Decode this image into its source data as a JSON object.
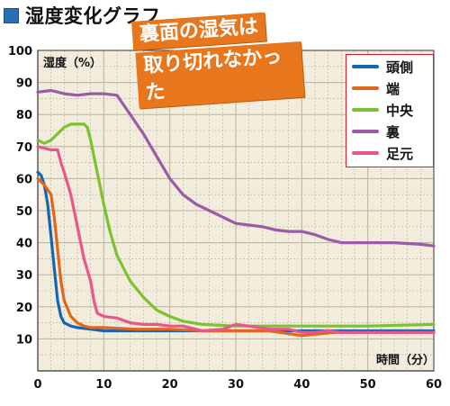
{
  "header": {
    "title": "湿度変化グラフ"
  },
  "callout": {
    "line1": "裏面の湿気は",
    "line2": "取り切れなかった"
  },
  "colors": {
    "header_square": "#2a6fb6",
    "callout_bg": "#e8761c",
    "legend_border": "#d31f25",
    "plot_bg": "#f2ecdc",
    "grid": "#b9b29a"
  },
  "chart_data": {
    "type": "line",
    "title": "",
    "xlabel": "時間（分）",
    "ylabel": "湿度（%）",
    "xlim": [
      0,
      60
    ],
    "ylim": [
      0,
      100
    ],
    "xticks": [
      0,
      10,
      20,
      30,
      40,
      50,
      60
    ],
    "yticks": [
      10,
      20,
      30,
      40,
      50,
      60,
      70,
      80,
      90,
      100
    ],
    "grid": true,
    "legend_position": "top-right",
    "series": [
      {
        "name": "頭側",
        "color": "#1565b5",
        "x": [
          0,
          0.5,
          1,
          1.5,
          2,
          2.5,
          3,
          3.5,
          4,
          5,
          6,
          8,
          10,
          20,
          30,
          40,
          50,
          60
        ],
        "y": [
          62,
          61,
          58,
          52,
          42,
          32,
          22,
          17,
          15,
          14,
          13.5,
          13,
          12.5,
          12.5,
          12.5,
          12.5,
          12.5,
          12.5
        ]
      },
      {
        "name": "端",
        "color": "#e2661b",
        "x": [
          0,
          1,
          2,
          2.5,
          3,
          3.5,
          4,
          5,
          6,
          7,
          8,
          10,
          15,
          20,
          25,
          30,
          35,
          40,
          45,
          50,
          60
        ],
        "y": [
          60,
          58,
          55,
          48,
          38,
          28,
          22,
          17,
          15,
          14,
          13.5,
          13.5,
          13,
          13,
          12.5,
          12.5,
          12.5,
          11,
          12,
          12,
          12
        ]
      },
      {
        "name": "中央",
        "color": "#7cc22e",
        "x": [
          0,
          1,
          2,
          3,
          4,
          5,
          6,
          7,
          7.5,
          8,
          9,
          10,
          11,
          12,
          14,
          16,
          18,
          20,
          22,
          25,
          30,
          40,
          50,
          60
        ],
        "y": [
          72,
          71,
          72,
          74,
          76,
          77,
          77,
          77,
          76,
          72,
          62,
          52,
          43,
          36,
          28,
          23,
          19,
          17,
          15.5,
          14.5,
          14,
          14,
          14,
          14.5
        ]
      },
      {
        "name": "裏",
        "color": "#9b5ba8",
        "x": [
          0,
          2,
          4,
          6,
          8,
          10,
          12,
          13,
          14,
          16,
          18,
          20,
          22,
          24,
          26,
          28,
          30,
          32,
          34,
          35,
          36,
          38,
          40,
          42,
          44,
          46,
          50,
          54,
          58,
          60
        ],
        "y": [
          87,
          87.5,
          86.5,
          86,
          86.5,
          86.5,
          86,
          83,
          80,
          74,
          67,
          60,
          55,
          52,
          50,
          48,
          46,
          45.5,
          45,
          44.5,
          44,
          43.5,
          43.5,
          42.5,
          41,
          40,
          40,
          40,
          39.5,
          39
        ]
      },
      {
        "name": "足元",
        "color": "#e9568a",
        "x": [
          0,
          2,
          3,
          3.5,
          4,
          5,
          6,
          7,
          8,
          8.5,
          9,
          10,
          12,
          14,
          16,
          18,
          20,
          22,
          25,
          28,
          30,
          32,
          35,
          38,
          40,
          42,
          44,
          46,
          50,
          55,
          60
        ],
        "y": [
          70,
          69,
          69,
          65,
          62,
          55,
          45,
          35,
          28,
          22,
          18,
          17,
          16.5,
          15,
          14.5,
          14.5,
          14,
          14,
          12.5,
          13,
          14.5,
          14,
          13,
          13,
          12,
          12,
          12.5,
          12,
          12,
          12,
          12
        ]
      }
    ]
  }
}
